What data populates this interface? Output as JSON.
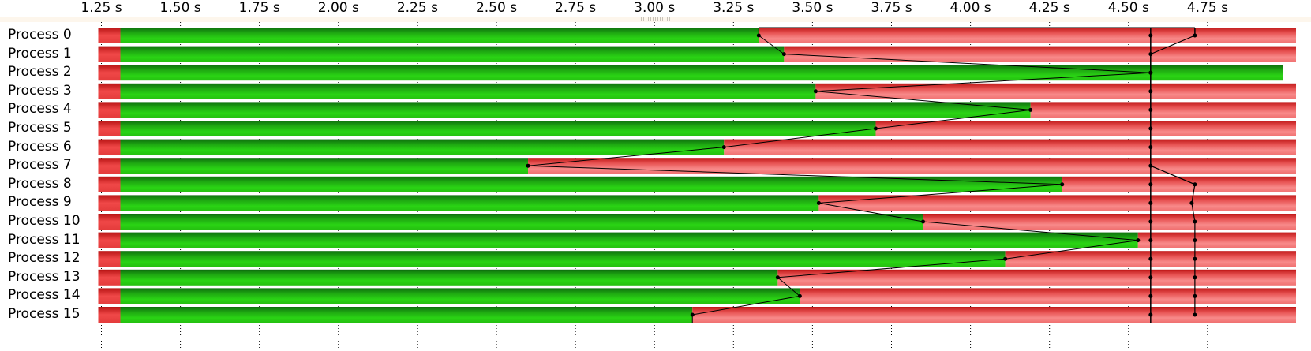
{
  "chart_data": {
    "type": "bar",
    "x_ticks": [
      "1.25 s",
      "1.50 s",
      "1.75 s",
      "2.00 s",
      "2.25 s",
      "2.50 s",
      "2.75 s",
      "3.00 s",
      "3.25 s",
      "3.50 s",
      "3.75 s",
      "4.00 s",
      "4.25 s",
      "4.50 s",
      "4.75 s"
    ],
    "x_tick_values": [
      1.25,
      1.5,
      1.75,
      2.0,
      2.25,
      2.5,
      2.75,
      3.0,
      3.25,
      3.5,
      3.75,
      4.0,
      4.25,
      4.5,
      4.75
    ],
    "xlim": [
      1.24,
      5.03
    ],
    "segment_colors": {
      "init": "#e83a3a",
      "compute": "#22c40e",
      "wait": "#f06a6a"
    },
    "processes": [
      {
        "name": "Process 0",
        "start": 1.24,
        "compute_start": 1.31,
        "compute_end": 3.33,
        "end": 5.03,
        "sync1": 4.57,
        "sync2": 4.71
      },
      {
        "name": "Process 1",
        "start": 1.24,
        "compute_start": 1.31,
        "compute_end": 3.41,
        "end": 5.03,
        "sync1": 4.57,
        "sync2": null
      },
      {
        "name": "Process 2",
        "start": 1.24,
        "compute_start": 1.31,
        "compute_end": 4.99,
        "end": 4.99,
        "sync1": 4.57,
        "sync2": null
      },
      {
        "name": "Process 3",
        "start": 1.24,
        "compute_start": 1.31,
        "compute_end": 3.51,
        "end": 5.03,
        "sync1": 4.57,
        "sync2": null
      },
      {
        "name": "Process 4",
        "start": 1.24,
        "compute_start": 1.31,
        "compute_end": 4.19,
        "end": 5.03,
        "sync1": 4.57,
        "sync2": null
      },
      {
        "name": "Process 5",
        "start": 1.24,
        "compute_start": 1.31,
        "compute_end": 3.7,
        "end": 5.03,
        "sync1": 4.57,
        "sync2": null
      },
      {
        "name": "Process 6",
        "start": 1.24,
        "compute_start": 1.31,
        "compute_end": 3.22,
        "end": 5.03,
        "sync1": 4.57,
        "sync2": null
      },
      {
        "name": "Process 7",
        "start": 1.24,
        "compute_start": 1.31,
        "compute_end": 2.6,
        "end": 5.03,
        "sync1": 4.57,
        "sync2": null
      },
      {
        "name": "Process 8",
        "start": 1.24,
        "compute_start": 1.31,
        "compute_end": 4.29,
        "end": 5.03,
        "sync1": 4.57,
        "sync2": 4.71
      },
      {
        "name": "Process 9",
        "start": 1.24,
        "compute_start": 1.31,
        "compute_end": 3.52,
        "end": 5.03,
        "sync1": 4.57,
        "sync2": 4.7
      },
      {
        "name": "Process 10",
        "start": 1.24,
        "compute_start": 1.31,
        "compute_end": 3.85,
        "end": 5.03,
        "sync1": 4.57,
        "sync2": 4.71
      },
      {
        "name": "Process 11",
        "start": 1.24,
        "compute_start": 1.31,
        "compute_end": 4.53,
        "end": 5.03,
        "sync1": 4.57,
        "sync2": 4.71
      },
      {
        "name": "Process 12",
        "start": 1.24,
        "compute_start": 1.31,
        "compute_end": 4.11,
        "end": 5.03,
        "sync1": 4.57,
        "sync2": 4.71
      },
      {
        "name": "Process 13",
        "start": 1.24,
        "compute_start": 1.31,
        "compute_end": 3.39,
        "end": 5.03,
        "sync1": 4.57,
        "sync2": 4.71
      },
      {
        "name": "Process 14",
        "start": 1.24,
        "compute_start": 1.31,
        "compute_end": 3.46,
        "end": 5.03,
        "sync1": 4.57,
        "sync2": 4.71
      },
      {
        "name": "Process 15",
        "start": 1.24,
        "compute_start": 1.31,
        "compute_end": 3.12,
        "end": 5.03,
        "sync1": 4.57,
        "sync2": 4.71
      }
    ],
    "grid": true,
    "legend": "none"
  }
}
